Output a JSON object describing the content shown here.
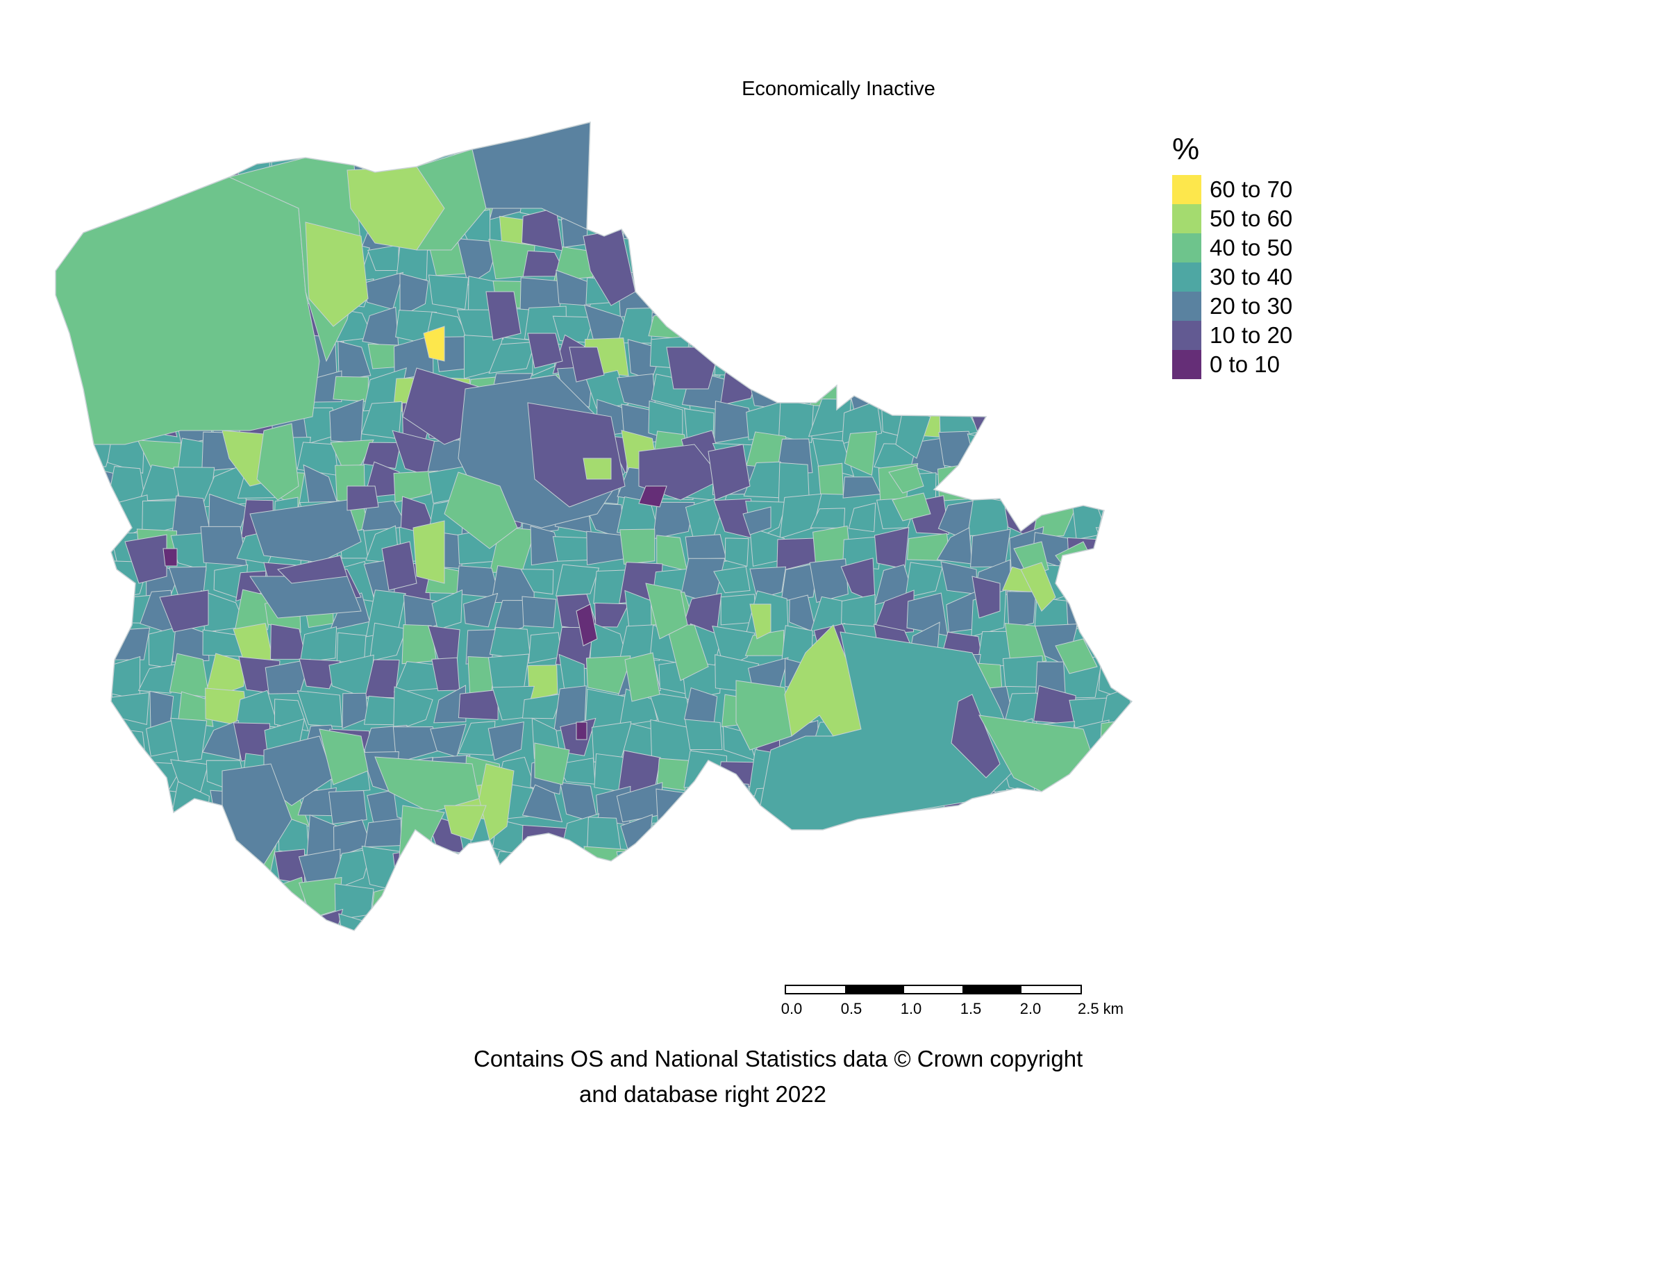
{
  "title": "Economically Inactive",
  "legend": {
    "title": "%",
    "items": [
      {
        "label": "60 to 70",
        "color": "#FDE74C"
      },
      {
        "label": "50 to 60",
        "color": "#A4DB6F"
      },
      {
        "label": "40 to 50",
        "color": "#6EC48C"
      },
      {
        "label": "30 to 40",
        "color": "#4EA7A3"
      },
      {
        "label": "20 to 30",
        "color": "#5A82A0"
      },
      {
        "label": "10 to 20",
        "color": "#625A92"
      },
      {
        "label": "0 to 10",
        "color": "#652E77"
      }
    ]
  },
  "scalebar": {
    "ticks": [
      "0.0",
      "0.5",
      "1.0",
      "1.5",
      "2.0",
      "2.5 km"
    ]
  },
  "credit": {
    "line1": "Contains OS and National Statistics data © Crown copyright",
    "line2": "and database right 2022"
  }
}
